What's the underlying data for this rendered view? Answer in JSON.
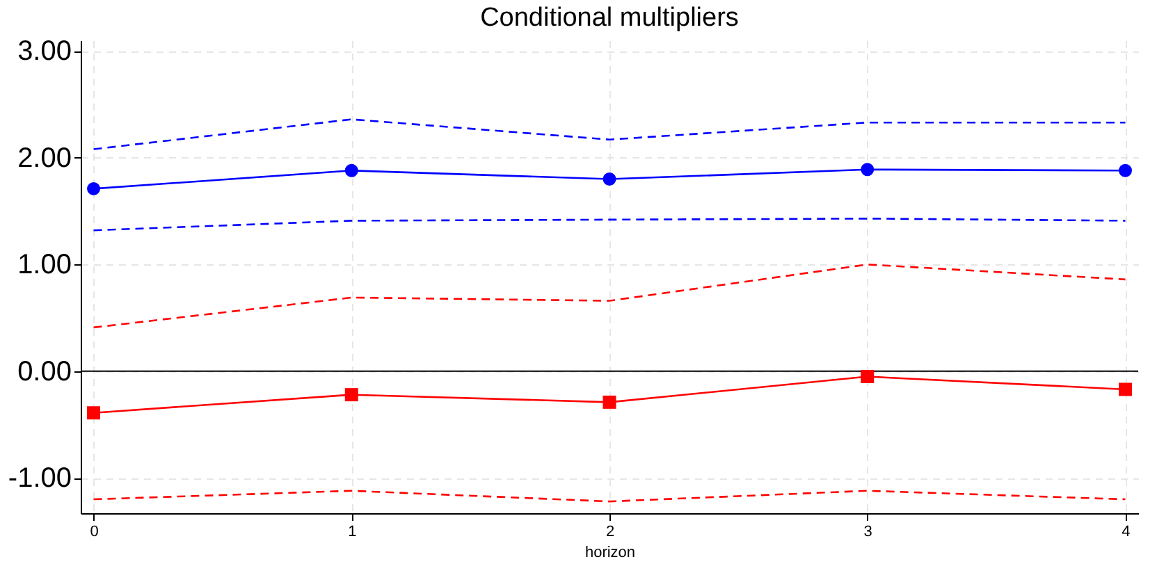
{
  "chart_data": {
    "type": "line",
    "title": "Conditional multipliers",
    "xlabel": "horizon",
    "x": [
      0,
      1,
      2,
      3,
      4
    ],
    "xlim": [
      -0.05,
      4.05
    ],
    "xticks": [
      0,
      1,
      2,
      3,
      4
    ],
    "ylim": [
      -1.33,
      3.1
    ],
    "yticks": [
      {
        "value": -1,
        "label": "-1.00"
      },
      {
        "value": 0,
        "label": "0.00"
      },
      {
        "value": 1,
        "label": "1.00"
      },
      {
        "value": 2,
        "label": "2.00"
      },
      {
        "value": 3,
        "label": "3.00"
      }
    ],
    "grid": true,
    "ref_lines": [
      {
        "axis": "y",
        "value": 0,
        "color": "#000000",
        "line_style": "solid"
      }
    ],
    "series": [
      {
        "color": "#0000ff",
        "values": [
          2.08,
          2.36,
          2.17,
          2.33,
          2.33
        ],
        "marker": "none",
        "line_style": "dashed"
      },
      {
        "color": "#0000ff",
        "values": [
          1.71,
          1.88,
          1.8,
          1.89,
          1.88
        ],
        "marker": "circle",
        "line_style": "solid"
      },
      {
        "color": "#0000ff",
        "values": [
          1.32,
          1.41,
          1.42,
          1.43,
          1.41
        ],
        "marker": "none",
        "line_style": "dashed"
      },
      {
        "color": "#ff0000",
        "values": [
          0.41,
          0.69,
          0.66,
          1.0,
          0.86
        ],
        "marker": "none",
        "line_style": "dashed"
      },
      {
        "color": "#ff0000",
        "values": [
          -0.39,
          -0.22,
          -0.29,
          -0.05,
          -0.17
        ],
        "marker": "square",
        "line_style": "solid"
      },
      {
        "color": "#ff0000",
        "values": [
          -1.2,
          -1.12,
          -1.22,
          -1.12,
          -1.2
        ],
        "marker": "none",
        "line_style": "dashed"
      }
    ]
  }
}
